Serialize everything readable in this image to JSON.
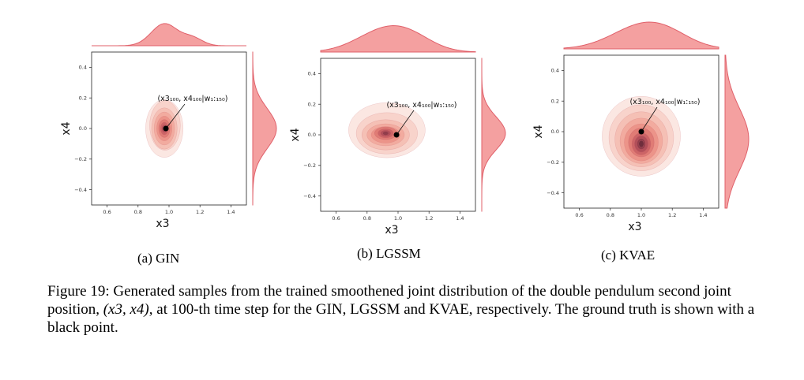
{
  "figure": {
    "caption_label": "Figure 19:",
    "caption_part1": "Generated samples from the trained smoothened joint distribution of the double pendulum second joint position,",
    "caption_math": "(x3, x4)",
    "caption_part2": ", at 100-th time step for the GIN, LGSSM and KVAE, respectively. The ground truth is shown with a black point."
  },
  "panels": [
    {
      "id": "a",
      "subcaption": "(a) GIN",
      "annotation": "(x3₁₀₀, x4₁₀₀|w₁:₁₅₀)"
    },
    {
      "id": "b",
      "subcaption": "(b) LGSSM",
      "annotation": "(x3₁₀₀, x4₁₀₀|w₁:₁₅₀)"
    },
    {
      "id": "c",
      "subcaption": "(c) KVAE",
      "annotation": "(x3₁₀₀, x4₁₀₀|w₁:₁₅₀)"
    }
  ],
  "chart_data": [
    {
      "type": "kde_joint",
      "panel": "a",
      "title": "",
      "xlabel": "x3",
      "ylabel": "x4",
      "xlim": [
        0.5,
        1.5
      ],
      "ylim": [
        -0.5,
        0.5
      ],
      "xticks": [
        "0.6",
        "0.8",
        "1.0",
        "1.2",
        "1.4"
      ],
      "yticks": [
        "−0.4",
        "−0.2",
        "0.0",
        "0.2",
        "0.4"
      ],
      "ground_truth": {
        "x": 0.98,
        "y": 0.0
      },
      "density_mode": {
        "x": 0.97,
        "y": 0.0
      },
      "spread": {
        "x": 0.06,
        "y": 0.11
      }
    },
    {
      "type": "kde_joint",
      "panel": "b",
      "title": "",
      "xlabel": "x3",
      "ylabel": "x4",
      "xlim": [
        0.5,
        1.5
      ],
      "ylim": [
        -0.5,
        0.5
      ],
      "xticks": [
        "0.6",
        "0.8",
        "1.0",
        "1.2",
        "1.4"
      ],
      "yticks": [
        "−0.4",
        "−0.2",
        "0.0",
        "0.2",
        "0.4"
      ],
      "ground_truth": {
        "x": 0.99,
        "y": 0.0
      },
      "density_mode": {
        "x": 0.92,
        "y": 0.01
      },
      "spread": {
        "x": 0.13,
        "y": 0.09
      }
    },
    {
      "type": "kde_joint",
      "panel": "c",
      "title": "",
      "xlabel": "x3",
      "ylabel": "x4",
      "xlim": [
        0.5,
        1.5
      ],
      "ylim": [
        -0.5,
        0.5
      ],
      "xticks": [
        "0.6",
        "0.8",
        "1.0",
        "1.2",
        "1.4"
      ],
      "yticks": [
        "−0.4",
        "−0.2",
        "0.0",
        "0.2",
        "0.4"
      ],
      "ground_truth": {
        "x": 1.0,
        "y": 0.0
      },
      "density_mode": {
        "x": 1.0,
        "y": -0.05
      },
      "spread": {
        "x": 0.14,
        "y": 0.17
      }
    }
  ]
}
